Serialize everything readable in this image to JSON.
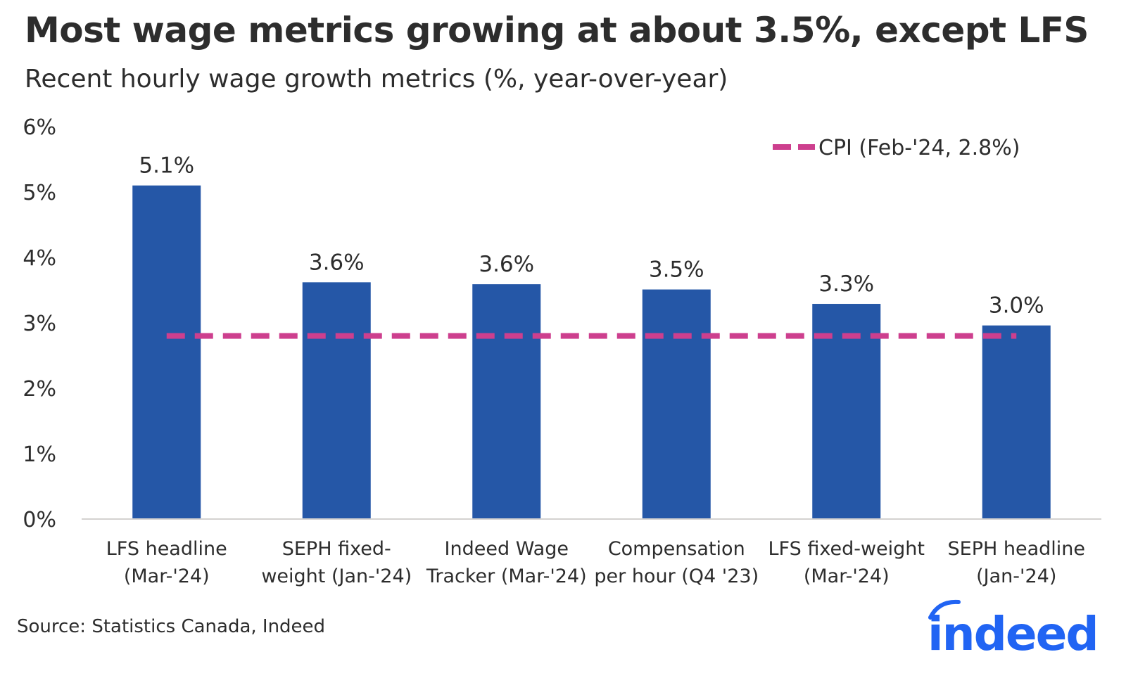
{
  "title": "Most wage metrics growing at about 3.5%, except LFS",
  "subtitle": "Recent hourly wage growth metrics (%, year-over-year)",
  "source": "Source: Statistics Canada, Indeed",
  "logo_text": "indeed",
  "colors": {
    "bar": "#2557a7",
    "cpi_line": "#cd3f8e",
    "axis": "#d4d2d0",
    "text": "#2d2d2d",
    "logo": "#2164f3"
  },
  "chart_data": {
    "type": "bar",
    "categories": [
      [
        "LFS headline",
        "(Mar-'24)"
      ],
      [
        "SEPH fixed-",
        "weight (Jan-'24)"
      ],
      [
        "Indeed Wage",
        "Tracker (Mar-'24)"
      ],
      [
        "Compensation",
        "per hour (Q4 '23)"
      ],
      [
        "LFS fixed-weight",
        "(Mar-'24)"
      ],
      [
        "SEPH headline",
        "(Jan-'24)"
      ]
    ],
    "values": [
      5.1,
      3.62,
      3.59,
      3.51,
      3.29,
      2.96
    ],
    "data_labels": [
      "5.1%",
      "3.6%",
      "3.6%",
      "3.5%",
      "3.3%",
      "3.0%"
    ],
    "reference_line": {
      "name": "CPI (Feb-'24, 2.8%)",
      "value": 2.8,
      "style": "dashed"
    },
    "y_ticks": [
      "0%",
      "1%",
      "2%",
      "3%",
      "4%",
      "5%",
      "6%"
    ],
    "ylim": [
      0,
      6
    ],
    "grid": false,
    "legend_position": "top-right"
  }
}
